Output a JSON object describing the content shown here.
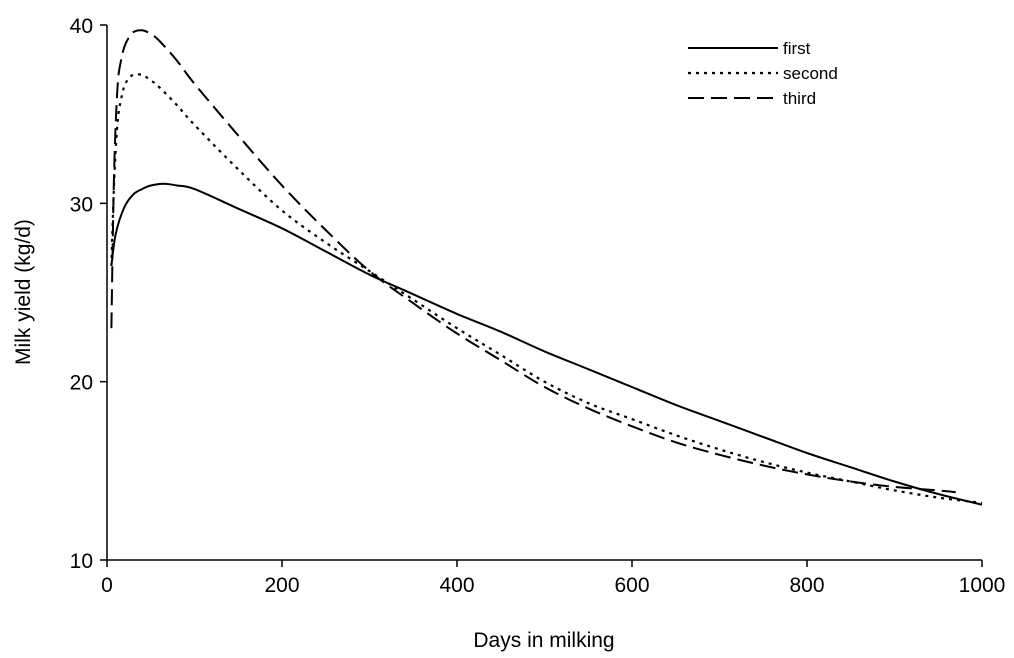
{
  "chart_data": {
    "type": "line",
    "title": "",
    "xlabel": "Days in milking",
    "ylabel": "Milk yield (kg/d)",
    "xlim": [
      0,
      1000
    ],
    "ylim": [
      10,
      40
    ],
    "xticks": [
      0,
      200,
      400,
      600,
      800,
      1000
    ],
    "yticks": [
      10,
      20,
      30,
      40
    ],
    "grid": false,
    "legend_position": "top-right",
    "series": [
      {
        "name": "first",
        "style": "solid",
        "color": "#000000",
        "x": [
          5,
          10,
          20,
          30,
          40,
          50,
          65,
          80,
          100,
          150,
          200,
          250,
          300,
          350,
          400,
          450,
          500,
          550,
          600,
          650,
          700,
          750,
          800,
          850,
          900,
          950,
          1000
        ],
        "y": [
          26.5,
          28.3,
          29.8,
          30.5,
          30.8,
          31.0,
          31.1,
          31.0,
          30.8,
          29.7,
          28.6,
          27.3,
          26.0,
          24.9,
          23.8,
          22.8,
          21.7,
          20.7,
          19.7,
          18.7,
          17.8,
          16.9,
          16.0,
          15.2,
          14.4,
          13.7,
          13.1
        ]
      },
      {
        "name": "second",
        "style": "dotted",
        "color": "#000000",
        "x": [
          5,
          8,
          12,
          16,
          20,
          25,
          30,
          40,
          50,
          60,
          80,
          100,
          150,
          200,
          250,
          300,
          350,
          400,
          450,
          500,
          550,
          600,
          650,
          700,
          750,
          800,
          850,
          900,
          950,
          1000
        ],
        "y": [
          26.5,
          31.0,
          34.5,
          35.8,
          36.6,
          37.0,
          37.2,
          37.2,
          36.9,
          36.5,
          35.5,
          34.4,
          31.9,
          29.6,
          27.8,
          26.2,
          24.6,
          23.0,
          21.5,
          20.0,
          18.8,
          17.9,
          17.0,
          16.2,
          15.5,
          14.9,
          14.4,
          13.9,
          13.5,
          13.2
        ]
      },
      {
        "name": "third",
        "style": "dashed",
        "color": "#000000",
        "x": [
          5,
          8,
          12,
          16,
          20,
          25,
          30,
          40,
          50,
          60,
          80,
          100,
          150,
          200,
          250,
          300,
          350,
          400,
          450,
          500,
          550,
          600,
          650,
          700,
          750,
          800,
          850,
          900,
          950,
          970
        ],
        "y": [
          23.0,
          31.5,
          36.5,
          38.0,
          38.8,
          39.3,
          39.6,
          39.7,
          39.5,
          39.1,
          38.0,
          36.7,
          33.8,
          31.0,
          28.5,
          26.2,
          24.4,
          22.7,
          21.2,
          19.7,
          18.5,
          17.5,
          16.6,
          15.9,
          15.3,
          14.8,
          14.4,
          14.1,
          13.9,
          13.8
        ]
      }
    ]
  }
}
